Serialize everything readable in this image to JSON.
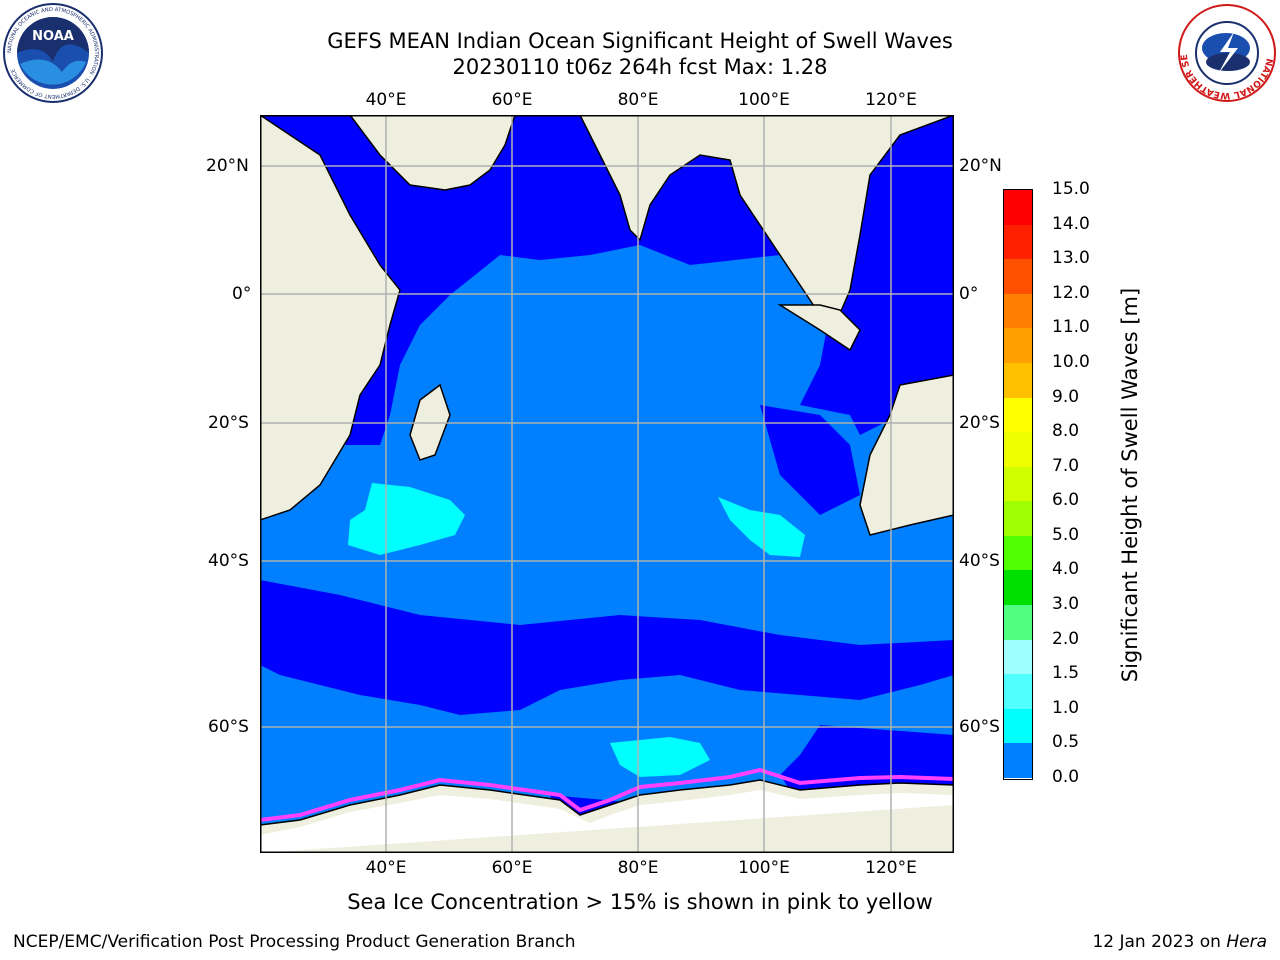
{
  "title": {
    "line1": "GEFS MEAN Indian Ocean Significant Height of Swell Waves",
    "line2": "20230110 t06z 264h fcst   Max: 1.28"
  },
  "map": {
    "lon_range": [
      20,
      130
    ],
    "lat_range": [
      -73,
      27
    ],
    "lon_ticks": [
      "40°E",
      "60°E",
      "80°E",
      "100°E",
      "120°E"
    ],
    "lat_ticks_left": [
      "20°N",
      "0°",
      "20°S",
      "40°S",
      "60°S"
    ],
    "lat_ticks_right": [
      "20°N",
      "0°",
      "20°S",
      "40°S",
      "60°S"
    ],
    "colors": {
      "land": "#efefdf",
      "swell_0_05": "#0000ff",
      "swell_05_10": "#0080ff",
      "swell_10_15": "#00ffff",
      "sea_ice": "#ff40ff",
      "grid": "#b0b0b0"
    }
  },
  "colorbar": {
    "title": "Significant Height of Swell Waves [m]",
    "labels": [
      "15.0",
      "14.0",
      "13.0",
      "12.0",
      "11.0",
      "10.0",
      "9.0",
      "8.0",
      "7.0",
      "6.0",
      "5.0",
      "4.0",
      "3.0",
      "2.0",
      "1.5",
      "1.0",
      "0.5",
      "0.0"
    ],
    "colors": [
      "#ff0000",
      "#ff2000",
      "#ff5000",
      "#ff8000",
      "#ffa000",
      "#ffc000",
      "#ffff00",
      "#f0ff00",
      "#d0ff00",
      "#a0ff00",
      "#50ff00",
      "#00e000",
      "#50ff80",
      "#a0ffff",
      "#50ffff",
      "#00ffff",
      "#0080ff",
      "#0000ff"
    ]
  },
  "caption": "Sea Ice Concentration > 15% is shown in pink to yellow",
  "footer": {
    "left": "NCEP/EMC/Verification Post Processing Product Generation Branch",
    "right_date": "12 Jan 2023 on ",
    "right_host": "Hera"
  },
  "logos": {
    "noaa": "NOAA",
    "noaa_ring": "NATIONAL OCEANIC AND ATMOSPHERIC ADMINISTRATION · U.S. DEPARTMENT OF COMMERCE",
    "nws_ring": "NATIONAL WEATHER SERVICE"
  }
}
